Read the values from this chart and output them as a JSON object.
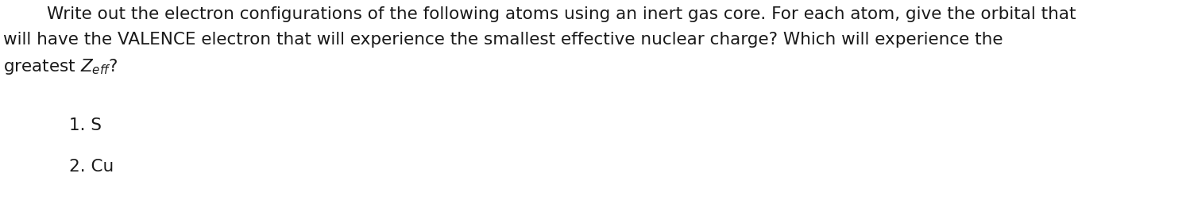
{
  "background_color": "#ffffff",
  "figsize": [
    14.98,
    2.62
  ],
  "dpi": 100,
  "line1": "        Write out the electron configurations of the following atoms using an inert gas core. For each atom, give the orbital that",
  "line2": "will have the VALENCE electron that will experience the smallest effective nuclear charge? Which will experience the",
  "line3_prefix": "greatest Z",
  "line3_suffix": "eff",
  "line3_end": "?",
  "item1": "1. S",
  "item2": "2. Cu",
  "font_size": 15.5,
  "font_color": "#1a1a1a",
  "item_indent": 0.058
}
